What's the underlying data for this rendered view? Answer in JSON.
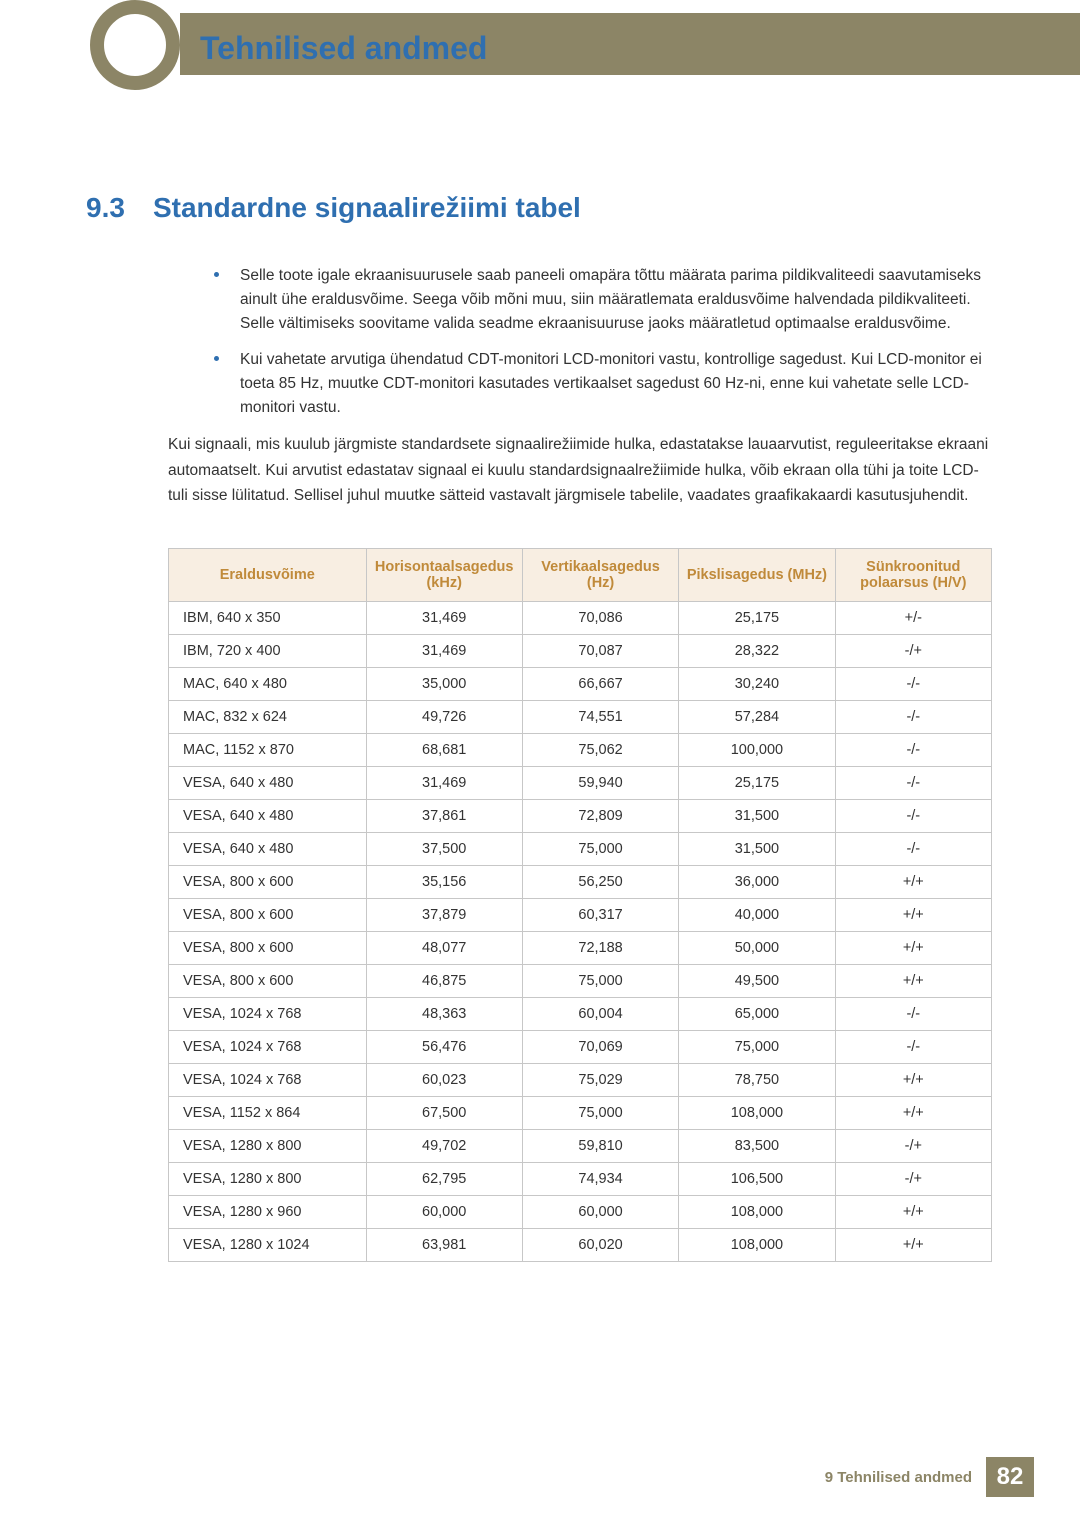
{
  "chapter_title": "Tehnilised andmed",
  "section": {
    "number": "9.3",
    "title": "Standardne signaalirežiimi tabel"
  },
  "bullets": [
    "Selle toote igale ekraanisuurusele saab paneeli omapära tõttu määrata parima pildikvaliteedi saavutamiseks ainult ühe eraldusvõime. Seega võib mõni muu, siin määratlemata eraldusvõime halvendada pildikvaliteeti. Selle vältimiseks soovitame valida seadme ekraanisuuruse jaoks määratletud optimaalse eraldusvõime.",
    "Kui vahetate arvutiga ühendatud CDT-monitori LCD-monitori vastu, kontrollige sagedust. Kui LCD-monitor ei toeta 85 Hz, muutke CDT-monitori kasutades vertikaalset sagedust 60 Hz-ni, enne kui vahetate selle LCD-monitori vastu."
  ],
  "paragraph": "Kui signaali, mis kuulub järgmiste standardsete signaalirežiimide hulka, edastatakse lauaarvutist, reguleeritakse ekraani automaatselt. Kui arvutist edastatav signaal ei kuulu standardsignaalrežiimide hulka, võib ekraan olla tühi ja toite LCD-tuli sisse lülitatud. Sellisel juhul muutke sätteid vastavalt järgmisele tabelile, vaadates graafikakaardi kasutusjuhendit.",
  "table": {
    "header_bg": "#f8eee2",
    "header_color": "#c08a3a",
    "border_color": "#c7c7c7",
    "columns": [
      "Eraldusvõime",
      "Horisontaalsagedus (kHz)",
      "Vertikaalsagedus (Hz)",
      "Pikslisagedus (MHz)",
      "Sünkroonitud polaarsus (H/V)"
    ],
    "col_widths": [
      "24%",
      "19%",
      "19%",
      "19%",
      "19%"
    ],
    "rows": [
      [
        "IBM, 640 x 350",
        "31,469",
        "70,086",
        "25,175",
        "+/-"
      ],
      [
        "IBM, 720 x 400",
        "31,469",
        "70,087",
        "28,322",
        "-/+"
      ],
      [
        "MAC, 640 x 480",
        "35,000",
        "66,667",
        "30,240",
        "-/-"
      ],
      [
        "MAC, 832 x 624",
        "49,726",
        "74,551",
        "57,284",
        "-/-"
      ],
      [
        "MAC, 1152 x 870",
        "68,681",
        "75,062",
        "100,000",
        "-/-"
      ],
      [
        "VESA, 640 x 480",
        "31,469",
        "59,940",
        "25,175",
        "-/-"
      ],
      [
        "VESA, 640 x 480",
        "37,861",
        "72,809",
        "31,500",
        "-/-"
      ],
      [
        "VESA, 640 x 480",
        "37,500",
        "75,000",
        "31,500",
        "-/-"
      ],
      [
        "VESA, 800 x 600",
        "35,156",
        "56,250",
        "36,000",
        "+/+"
      ],
      [
        "VESA, 800 x 600",
        "37,879",
        "60,317",
        "40,000",
        "+/+"
      ],
      [
        "VESA, 800 x 600",
        "48,077",
        "72,188",
        "50,000",
        "+/+"
      ],
      [
        "VESA, 800 x 600",
        "46,875",
        "75,000",
        "49,500",
        "+/+"
      ],
      [
        "VESA, 1024 x 768",
        "48,363",
        "60,004",
        "65,000",
        "-/-"
      ],
      [
        "VESA, 1024 x 768",
        "56,476",
        "70,069",
        "75,000",
        "-/-"
      ],
      [
        "VESA, 1024 x 768",
        "60,023",
        "75,029",
        "78,750",
        "+/+"
      ],
      [
        "VESA, 1152 x 864",
        "67,500",
        "75,000",
        "108,000",
        "+/+"
      ],
      [
        "VESA, 1280 x 800",
        "49,702",
        "59,810",
        "83,500",
        "-/+"
      ],
      [
        "VESA, 1280 x 800",
        "62,795",
        "74,934",
        "106,500",
        "-/+"
      ],
      [
        "VESA, 1280 x 960",
        "60,000",
        "60,000",
        "108,000",
        "+/+"
      ],
      [
        "VESA, 1280 x 1024",
        "63,981",
        "60,020",
        "108,000",
        "+/+"
      ]
    ]
  },
  "footer": {
    "label": "9 Tehnilised andmed",
    "page": "82"
  },
  "colors": {
    "accent_olive": "#8c8566",
    "accent_blue": "#2f6fb0",
    "text": "#333333",
    "bg": "#ffffff"
  }
}
